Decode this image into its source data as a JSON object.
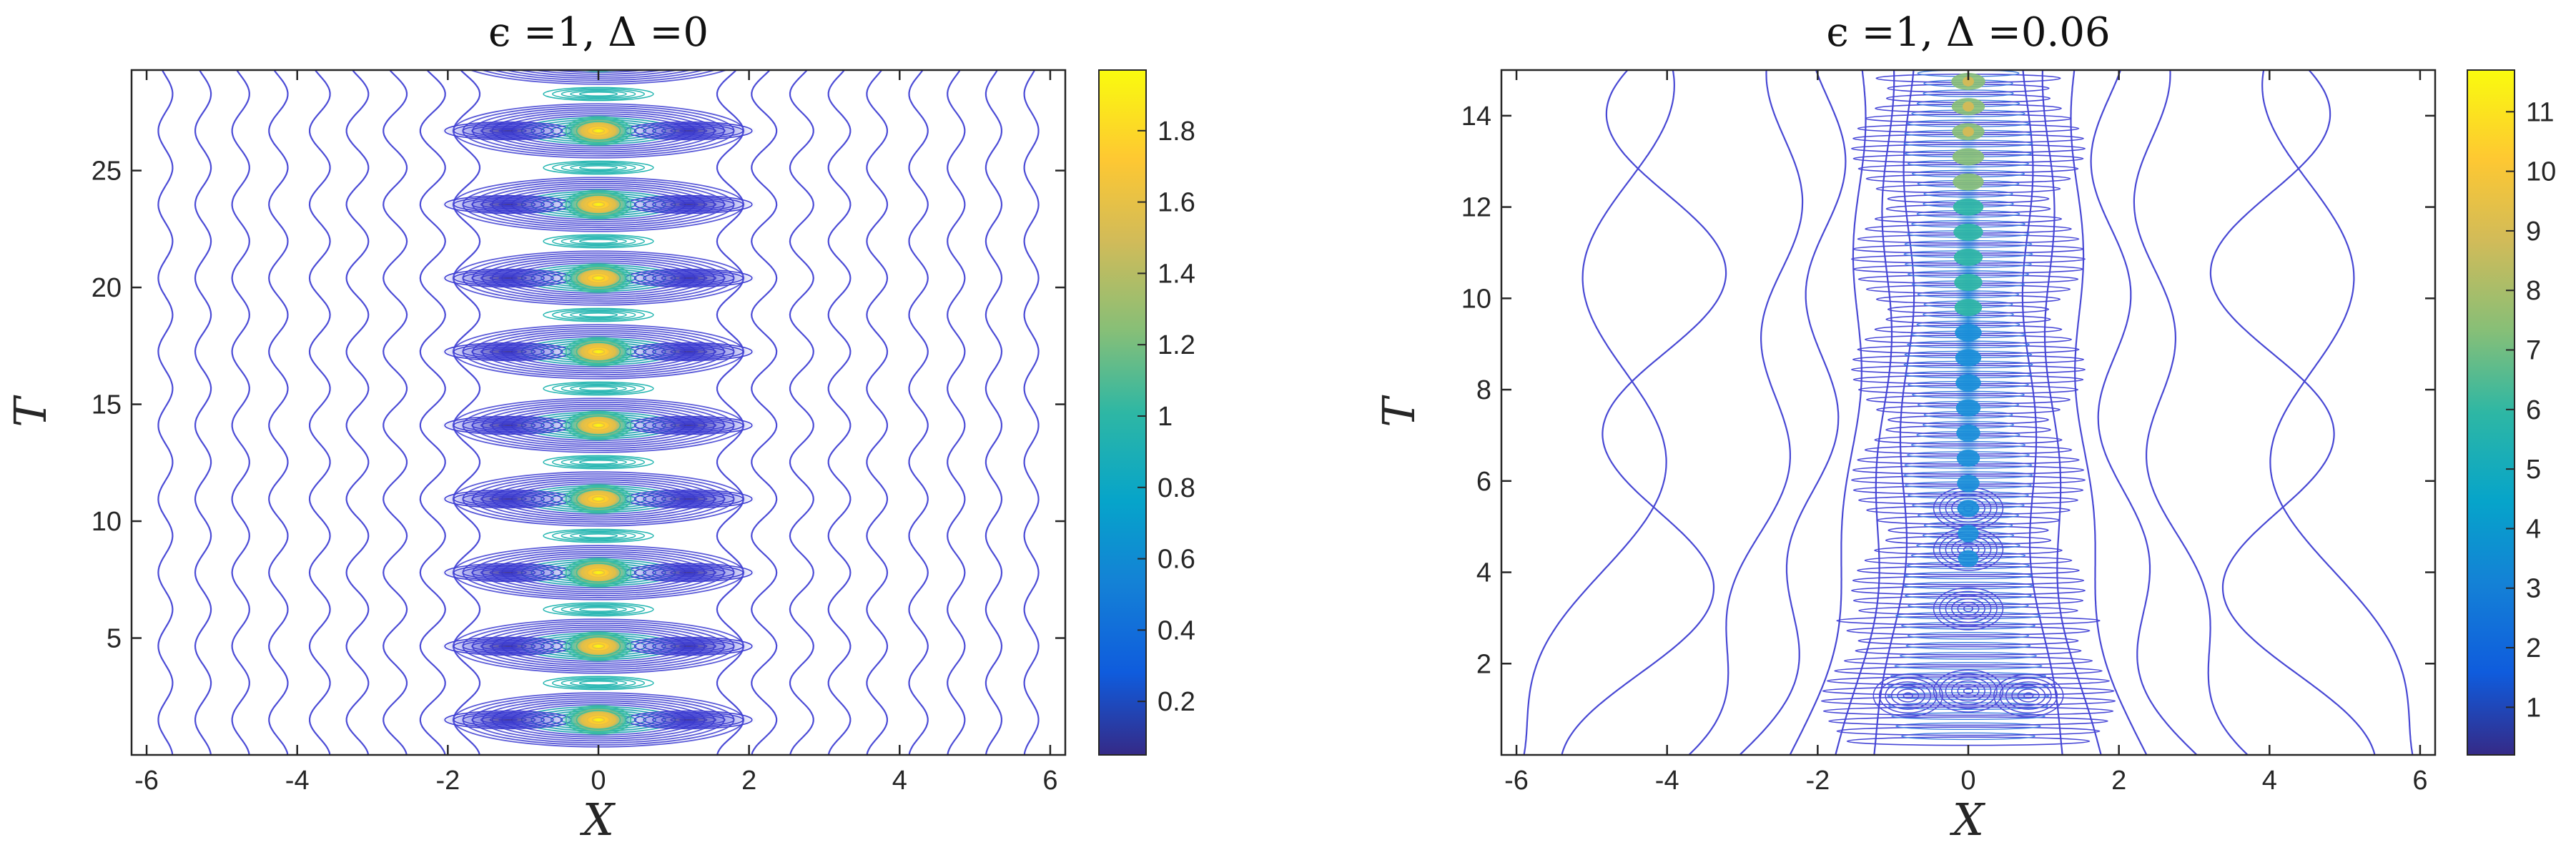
{
  "chart_data": [
    {
      "type": "contour",
      "title": "ϵ =1, Δ =0",
      "xlabel": "X",
      "ylabel": "T",
      "xlim": [
        -6.2,
        6.2
      ],
      "ylim": [
        0,
        29.3
      ],
      "xticks": [
        "-6",
        "-4",
        "-2",
        "0",
        "2",
        "4",
        "6"
      ],
      "yticks": [
        "5",
        "10",
        "15",
        "20",
        "25"
      ],
      "colorbar": {
        "min": 0.05,
        "max": 1.97,
        "ticks": [
          "0.2",
          "0.4",
          "0.6",
          "0.8",
          "1",
          "1.2",
          "1.4",
          "1.6",
          "1.8"
        ]
      },
      "peaks_at_x": 0,
      "peak_T": [
        1.5,
        4.7,
        7.8,
        11.0,
        14.1,
        17.3,
        20.4,
        23.6,
        26.7
      ]
    },
    {
      "type": "contour",
      "title": "ϵ =1, Δ =0.06",
      "xlabel": "X",
      "ylabel": "T",
      "xlim": [
        -6.2,
        6.2
      ],
      "ylim": [
        0,
        15
      ],
      "xticks": [
        "-6",
        "-4",
        "-2",
        "0",
        "2",
        "4",
        "6"
      ],
      "yticks": [
        "2",
        "4",
        "6",
        "8",
        "10",
        "12",
        "14"
      ],
      "colorbar": {
        "min": 0.2,
        "max": 11.7,
        "ticks": [
          "1",
          "2",
          "3",
          "4",
          "5",
          "6",
          "7",
          "8",
          "9",
          "10",
          "11"
        ]
      }
    }
  ]
}
